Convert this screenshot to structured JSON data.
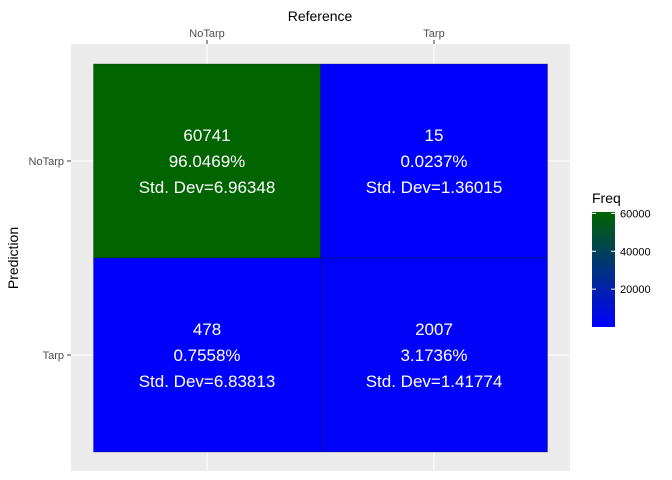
{
  "chart_data": {
    "type": "heatmap",
    "title": "",
    "xlabel": "Reference",
    "ylabel": "Prediction",
    "x_categories": [
      "NoTarp",
      "Tarp"
    ],
    "y_categories": [
      "NoTarp",
      "Tarp"
    ],
    "x_axis_position": "top",
    "grid": true,
    "legend_position": "right",
    "cells": [
      {
        "reference": "NoTarp",
        "prediction": "NoTarp",
        "freq": 60741,
        "freq_label": "60741",
        "percent_label": "96.0469%",
        "sd_label": "Std. Dev=6.96348"
      },
      {
        "reference": "Tarp",
        "prediction": "NoTarp",
        "freq": 15,
        "freq_label": "15",
        "percent_label": "0.0237%",
        "sd_label": "Std. Dev=1.36015"
      },
      {
        "reference": "NoTarp",
        "prediction": "Tarp",
        "freq": 478,
        "freq_label": "478",
        "percent_label": "0.7558%",
        "sd_label": "Std. Dev=6.83813"
      },
      {
        "reference": "Tarp",
        "prediction": "Tarp",
        "freq": 2007,
        "freq_label": "2007",
        "percent_label": "3.1736%",
        "sd_label": "Std. Dev=1.41774"
      }
    ],
    "legend": {
      "title": "Freq",
      "ticks": [
        20000,
        40000,
        60000
      ],
      "tick_labels": [
        "20000",
        "40000",
        "60000"
      ],
      "range": [
        15,
        60741
      ],
      "low_color": "#0000ff",
      "high_color": "#006400"
    },
    "colors": {
      "panel_background": "#ebebeb",
      "grid": "#ffffff",
      "cell_text": "#ffffff"
    }
  }
}
